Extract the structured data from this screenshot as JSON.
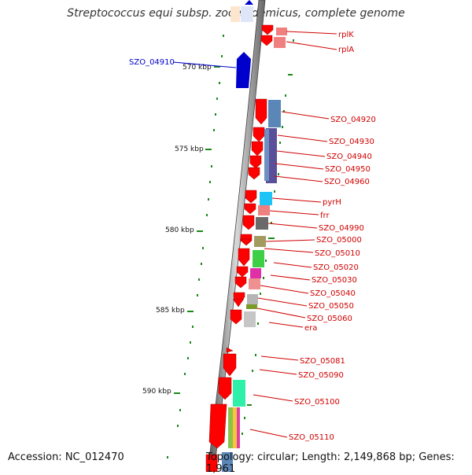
{
  "map": {
    "title": "Streptococcus equi subsp. zooepidemicus, complete genome",
    "accession": "Accession: NC_012470",
    "footer": "Topology: circular; Length: 2,149,868 bp; Genes: 1,961"
  },
  "kbp_ticks": [
    "570 kbp",
    "575 kbp",
    "580 kbp",
    "585 kbp",
    "590 kbp"
  ],
  "highlight_gene": "SZO_04910",
  "genes": [
    "rplK",
    "rplA",
    "SZO_04920",
    "SZO_04930",
    "SZO_04940",
    "SZO_04950",
    "SZO_04960",
    "pyrH",
    "frr",
    "SZO_04990",
    "SZO_05000",
    "SZO_05010",
    "SZO_05020",
    "SZO_05030",
    "SZO_05040",
    "SZO_05050",
    "SZO_05060",
    "era",
    "SZO_05081",
    "SZO_05090",
    "SZO_05100",
    "SZO_05110"
  ],
  "colors": {
    "gene": "#ff0000",
    "highlight": "#0000cc",
    "label": "#d00000",
    "backbone": "#8a8a8a",
    "gc_ticks": "#1a8a1a"
  }
}
